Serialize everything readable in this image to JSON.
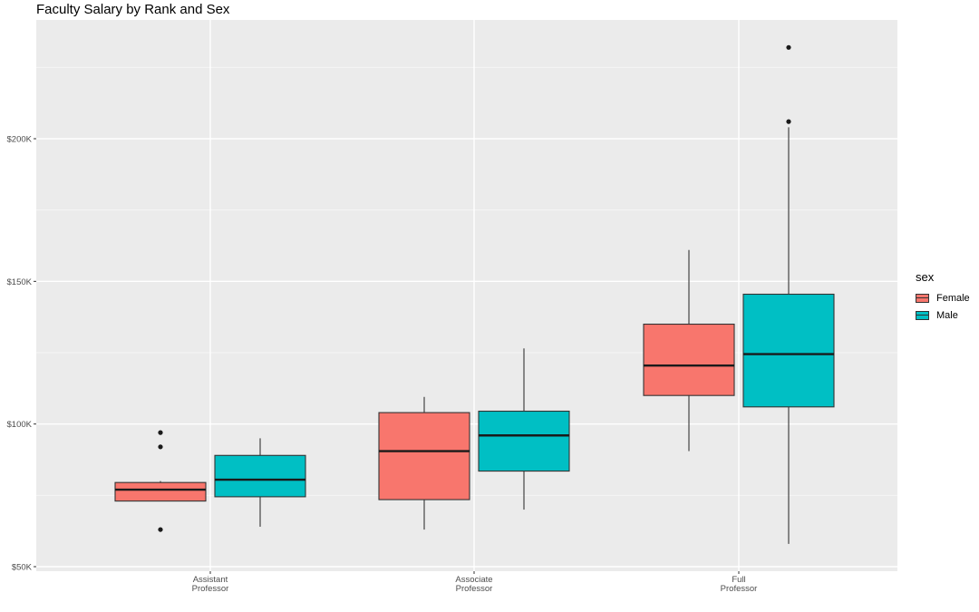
{
  "chart_data": {
    "type": "box",
    "title": "Faculty Salary by Rank and Sex",
    "xlabel": "",
    "ylabel": "",
    "categories": [
      "Assistant\nProfessor",
      "Associate\nProfessor",
      "Full\nProfessor"
    ],
    "y_ticks": [
      {
        "value": 50000,
        "label": "$50K"
      },
      {
        "value": 100000,
        "label": "$100K"
      },
      {
        "value": 150000,
        "label": "$150K"
      },
      {
        "value": 200000,
        "label": "$200K"
      }
    ],
    "ylim": [
      50000,
      240000
    ],
    "legend": {
      "title": "sex",
      "position": "right"
    },
    "grid": true,
    "series": [
      {
        "name": "Female",
        "color": "#F8766D",
        "boxes": [
          {
            "min": 73000,
            "q1": 73000,
            "median": 77000,
            "q3": 79500,
            "max": 80000,
            "outliers": [
              97000,
              92000,
              63000
            ]
          },
          {
            "min": 63000,
            "q1": 73500,
            "median": 90500,
            "q3": 104000,
            "max": 109500,
            "outliers": []
          },
          {
            "min": 90500,
            "q1": 110000,
            "median": 120500,
            "q3": 135000,
            "max": 161000,
            "outliers": []
          }
        ]
      },
      {
        "name": "Male",
        "color": "#00BFC4",
        "boxes": [
          {
            "min": 64000,
            "q1": 74500,
            "median": 80500,
            "q3": 89000,
            "max": 95000,
            "outliers": []
          },
          {
            "min": 70000,
            "q1": 83500,
            "median": 96000,
            "q3": 104500,
            "max": 126500,
            "outliers": []
          },
          {
            "min": 58000,
            "q1": 106000,
            "median": 124500,
            "q3": 145500,
            "max": 204000,
            "outliers": [
              232000,
              206000
            ]
          }
        ]
      }
    ]
  }
}
